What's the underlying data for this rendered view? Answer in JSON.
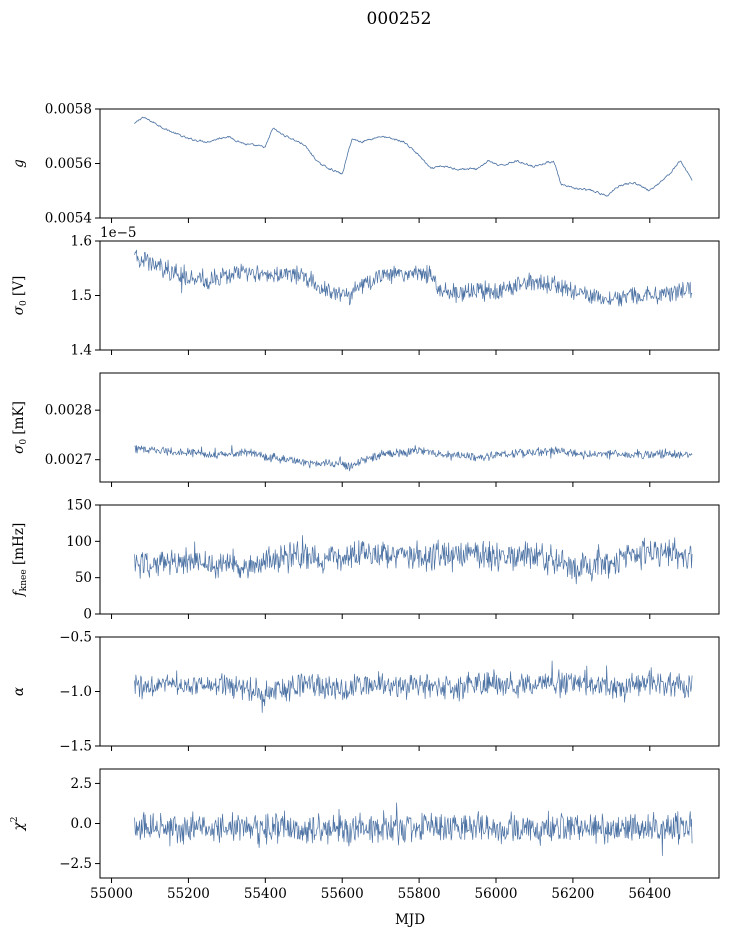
{
  "figure": {
    "title": "000252",
    "xlabel": "MJD"
  },
  "chart_data": [
    {
      "type": "line",
      "ylabel": "g",
      "ylim": [
        0.0054,
        0.0058
      ],
      "yticks": [
        0.0054,
        0.0056,
        0.0058
      ],
      "ytick_labels": [
        "0.0054",
        "0.0056",
        "0.0058"
      ],
      "offset_text": "",
      "noise": 6e-06,
      "xlim": [
        54970,
        56580
      ],
      "series": [
        {
          "name": "g",
          "x": [
            55060,
            55080,
            55110,
            55150,
            55200,
            55250,
            55300,
            55350,
            55400,
            55420,
            55440,
            55470,
            55500,
            55540,
            55570,
            55600,
            55625,
            55650,
            55700,
            55760,
            55800,
            55830,
            55860,
            55900,
            55950,
            55980,
            56010,
            56050,
            56100,
            56150,
            56170,
            56200,
            56250,
            56290,
            56320,
            56360,
            56400,
            56450,
            56480,
            56510
          ],
          "values": [
            0.005745,
            0.00577,
            0.00575,
            0.00572,
            0.00569,
            0.00568,
            0.0057,
            0.00567,
            0.00566,
            0.00573,
            0.00571,
            0.00569,
            0.00567,
            0.0056,
            0.00558,
            0.00556,
            0.00569,
            0.00568,
            0.0057,
            0.00568,
            0.00563,
            0.00558,
            0.00559,
            0.00558,
            0.00558,
            0.00561,
            0.00559,
            0.00561,
            0.00559,
            0.00561,
            0.00552,
            0.00551,
            0.0055,
            0.00548,
            0.00552,
            0.00553,
            0.0055,
            0.00556,
            0.00561,
            0.00554
          ]
        }
      ]
    },
    {
      "type": "line",
      "ylabel": "σ0 [V]",
      "ylim": [
        1.4e-05,
        1.6e-05
      ],
      "yticks": [
        1.4e-05,
        1.5e-05,
        1.6e-05
      ],
      "ytick_labels": [
        "1.4",
        "1.5",
        "1.6"
      ],
      "offset_text": "1e−5",
      "noise": 1.4e-07,
      "xlim": [
        54970,
        56580
      ],
      "series": [
        {
          "name": "sigma0_V",
          "x": [
            55060,
            55080,
            55120,
            55160,
            55200,
            55250,
            55300,
            55350,
            55400,
            55450,
            55500,
            55550,
            55600,
            55620,
            55640,
            55670,
            55700,
            55750,
            55800,
            55830,
            55850,
            55900,
            55950,
            56000,
            56050,
            56100,
            56150,
            56200,
            56250,
            56300,
            56350,
            56400,
            56450,
            56500,
            56510
          ],
          "values": [
            1.57e-05,
            1.565e-05,
            1.555e-05,
            1.545e-05,
            1.535e-05,
            1.53e-05,
            1.535e-05,
            1.54e-05,
            1.54e-05,
            1.54e-05,
            1.535e-05,
            1.51e-05,
            1.5e-05,
            1.495e-05,
            1.515e-05,
            1.525e-05,
            1.535e-05,
            1.54e-05,
            1.54e-05,
            1.535e-05,
            1.51e-05,
            1.505e-05,
            1.51e-05,
            1.505e-05,
            1.52e-05,
            1.525e-05,
            1.52e-05,
            1.505e-05,
            1.5e-05,
            1.495e-05,
            1.5e-05,
            1.5e-05,
            1.505e-05,
            1.515e-05,
            1.51e-05
          ]
        }
      ]
    },
    {
      "type": "line",
      "ylabel": "σ0 [mK]",
      "ylim": [
        0.002655,
        0.002875
      ],
      "yticks": [
        0.0027,
        0.0028
      ],
      "ytick_labels": [
        "0.0027",
        "0.0028"
      ],
      "offset_text": "",
      "noise": 7.5e-06,
      "xlim": [
        54970,
        56580
      ],
      "series": [
        {
          "name": "sigma0_mK",
          "x": [
            55060,
            55100,
            55150,
            55200,
            55250,
            55300,
            55350,
            55400,
            55450,
            55500,
            55550,
            55600,
            55620,
            55650,
            55700,
            55750,
            55800,
            55850,
            55900,
            55950,
            56000,
            56050,
            56100,
            56150,
            56200,
            56250,
            56300,
            56350,
            56400,
            56450,
            56510
          ],
          "values": [
            0.002722,
            0.00272,
            0.002718,
            0.002715,
            0.00271,
            0.002712,
            0.002715,
            0.002705,
            0.0027,
            0.002695,
            0.00269,
            0.002695,
            0.002685,
            0.0027,
            0.00271,
            0.002715,
            0.002718,
            0.002712,
            0.002708,
            0.002705,
            0.00271,
            0.002712,
            0.002715,
            0.002718,
            0.002713,
            0.00271,
            0.002712,
            0.00271,
            0.00271,
            0.002712,
            0.00271
          ]
        }
      ]
    },
    {
      "type": "line",
      "ylabel": "fknee [mHz]",
      "ylim": [
        0,
        150
      ],
      "yticks": [
        0,
        50,
        100,
        150
      ],
      "ytick_labels": [
        "0",
        "50",
        "100",
        "150"
      ],
      "offset_text": "",
      "noise": 16,
      "xlim": [
        54970,
        56580
      ],
      "series": [
        {
          "name": "fknee",
          "x": [
            55060,
            55150,
            55250,
            55350,
            55400,
            55450,
            55500,
            55550,
            55600,
            55650,
            55700,
            55750,
            55800,
            55850,
            55900,
            55950,
            56000,
            56050,
            56100,
            56150,
            56200,
            56250,
            56280,
            56300,
            56350,
            56400,
            56450,
            56510
          ],
          "values": [
            68,
            70,
            70,
            70,
            72,
            78,
            80,
            78,
            80,
            85,
            85,
            82,
            80,
            82,
            78,
            80,
            78,
            80,
            80,
            75,
            62,
            65,
            70,
            68,
            80,
            85,
            85,
            75
          ]
        }
      ]
    },
    {
      "type": "line",
      "ylabel": "α",
      "ylim": [
        -1.5,
        -0.5
      ],
      "yticks": [
        -1.5,
        -1.0,
        -0.5
      ],
      "ytick_labels": [
        "−1.5",
        "−1.0",
        "−0.5"
      ],
      "offset_text": "",
      "noise": 0.09,
      "xlim": [
        54970,
        56580
      ],
      "series": [
        {
          "name": "alpha",
          "x": [
            55060,
            55150,
            55250,
            55350,
            55400,
            55450,
            55500,
            55550,
            55600,
            55650,
            55700,
            55750,
            55800,
            55850,
            55900,
            55950,
            56000,
            56050,
            56100,
            56150,
            56200,
            56250,
            56300,
            56350,
            56400,
            56450,
            56510
          ],
          "values": [
            -0.95,
            -0.94,
            -0.93,
            -0.96,
            -1.02,
            -0.98,
            -0.93,
            -0.95,
            -0.98,
            -0.93,
            -0.94,
            -0.95,
            -0.95,
            -0.96,
            -0.95,
            -0.93,
            -0.92,
            -0.94,
            -0.94,
            -0.92,
            -0.92,
            -0.93,
            -0.96,
            -0.94,
            -0.93,
            -0.95,
            -0.94
          ]
        }
      ]
    },
    {
      "type": "line",
      "ylabel": "χ2",
      "ylim": [
        -3.4,
        3.4
      ],
      "yticks": [
        -2.5,
        0.0,
        2.5
      ],
      "ytick_labels": [
        "−2.5",
        "0.0",
        "2.5"
      ],
      "offset_text": "",
      "noise": 0.75,
      "xlim": [
        54970,
        56580
      ],
      "series": [
        {
          "name": "chi2",
          "x": [
            55060,
            56510
          ],
          "values": [
            -0.3,
            -0.3
          ]
        }
      ]
    }
  ],
  "xaxis": {
    "ticks": [
      55000,
      55200,
      55400,
      55600,
      55800,
      56000,
      56200,
      56400
    ],
    "tick_labels": [
      "55000",
      "55200",
      "55400",
      "55600",
      "55800",
      "56000",
      "56200",
      "56400"
    ]
  },
  "colors": {
    "series": "#4c72a4"
  }
}
